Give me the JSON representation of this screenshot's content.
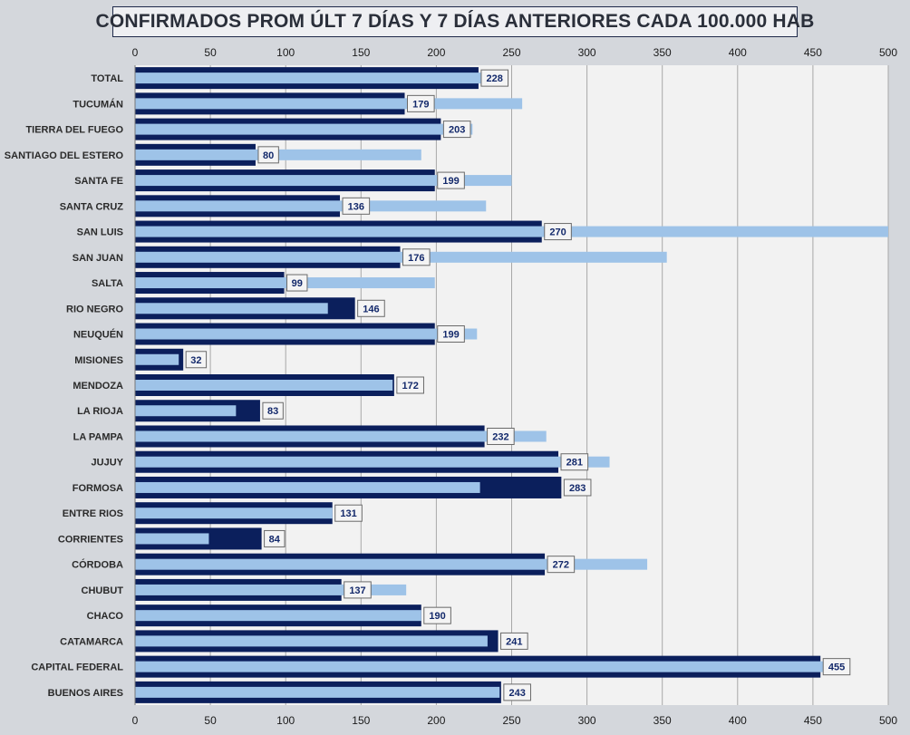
{
  "chart_data": {
    "type": "bar",
    "orientation": "horizontal",
    "title": "CONFIRMADOS PROM ÚLT 7 DÍAS Y 7 DÍAS ANTERIORES CADA 100.000 HAB",
    "xlim": [
      0,
      500
    ],
    "xticks": [
      "0",
      "50",
      "100",
      "150",
      "200",
      "250",
      "300",
      "350",
      "400",
      "450",
      "500"
    ],
    "grid": true,
    "legend": "none",
    "colors": {
      "last7": "#0b1f5c",
      "previous7": "#9ec3e8",
      "label_text": "#13296b",
      "plot_bg": "#f2f2f2",
      "grid": "#a8a8a8"
    },
    "categories": [
      "TOTAL",
      "TUCUMÁN",
      "TIERRA  DEL FUEGO",
      "SANTIAGO  DEL ESTERO",
      "SANTA FE",
      "SANTA CRUZ",
      "SAN LUIS",
      "SAN JUAN",
      "SALTA",
      "RIO NEGRO",
      "NEUQUÉN",
      "MISIONES",
      "MENDOZA",
      "LA RIOJA",
      "LA PAMPA",
      "JUJUY",
      "FORMOSA",
      "ENTRE RIOS",
      "CORRIENTES",
      "CÓRDOBA",
      "CHUBUT",
      "CHACO",
      "CATAMARCA",
      "CAPITAL FEDERAL",
      "BUENOS  AIRES"
    ],
    "series": [
      {
        "key": "last7",
        "values": [
          228,
          179,
          203,
          80,
          199,
          136,
          270,
          176,
          99,
          146,
          199,
          32,
          172,
          83,
          232,
          281,
          283,
          131,
          84,
          272,
          137,
          190,
          241,
          455,
          243
        ]
      },
      {
        "key": "previous7",
        "values": [
          246,
          257,
          224,
          190,
          250,
          233,
          500,
          353,
          199,
          128,
          227,
          29,
          171,
          67,
          273,
          315,
          229,
          131,
          49,
          340,
          180,
          190,
          234,
          458,
          242
        ]
      }
    ],
    "data_labels": [
      "228",
      "179",
      "203",
      "80",
      "199",
      "136",
      "270",
      "176",
      "99",
      "146",
      "199",
      "32",
      "172",
      "83",
      "232",
      "281",
      "283",
      "131",
      "84",
      "272",
      "137",
      "190",
      "241",
      "455",
      "243"
    ]
  }
}
